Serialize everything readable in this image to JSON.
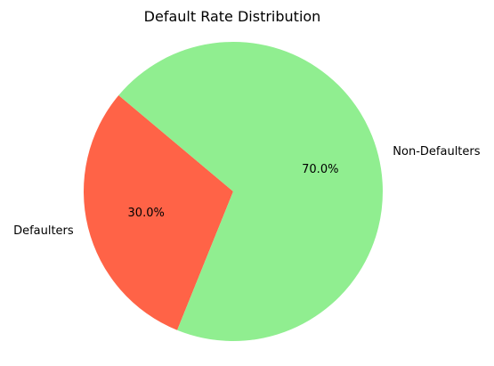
{
  "chart_data": {
    "type": "pie",
    "title": "Default Rate Distribution",
    "start_angle_deg": 140,
    "counterclockwise": true,
    "slices": [
      {
        "name": "Defaulters",
        "value": 30.0,
        "pct_label": "30.0%",
        "color": "#ff6347"
      },
      {
        "name": "Non-Defaulters",
        "value": 70.0,
        "pct_label": "70.0%",
        "color": "#90ee90"
      }
    ]
  }
}
